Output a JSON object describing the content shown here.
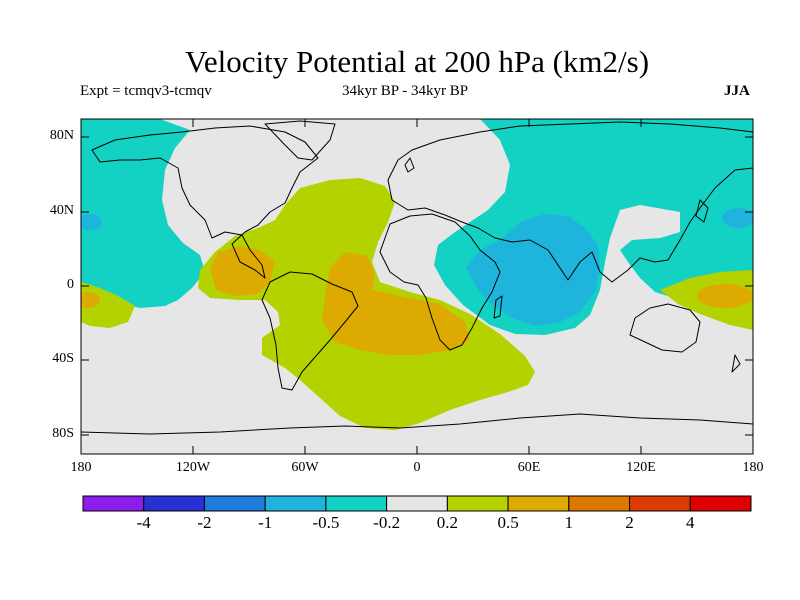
{
  "title": "Velocity Potential at 200 hPa (km2/s)",
  "subtitle_left": "Expt = tcmqv3-tcmqv",
  "subtitle_center": "34kyr BP - 34kyr BP",
  "subtitle_right": "JJA",
  "lat_ticks": [
    "80N",
    "40N",
    "0",
    "40S",
    "80S"
  ],
  "lon_ticks": [
    "180",
    "120W",
    "60W",
    "0",
    "60E",
    "120E",
    "180"
  ],
  "colorbar": {
    "levels": [
      "-4",
      "-2",
      "-1",
      "-0.5",
      "-0.2",
      "0.2",
      "0.5",
      "1",
      "2",
      "4"
    ],
    "colors": [
      "#8c1eeb",
      "#2832d2",
      "#1e7ddc",
      "#1eb4dc",
      "#14d2c3",
      "#e6e6e6",
      "#b4d200",
      "#dcaa00",
      "#dc7800",
      "#dc3c00",
      "#dc0000"
    ]
  },
  "palette": {
    "neutral": "#e6e6e6",
    "neg_weak": "#14d2c3",
    "neg_mid": "#1eb4dc",
    "pos_weak": "#b4d200",
    "pos_mid": "#dcaa00"
  }
}
